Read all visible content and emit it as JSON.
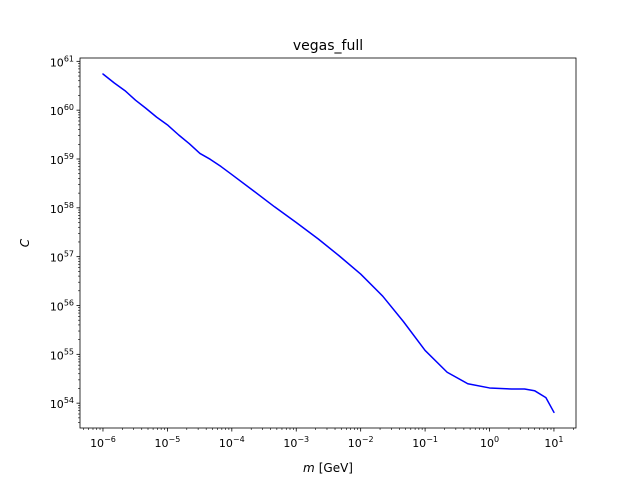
{
  "chart_data": {
    "type": "line",
    "title": "vegas_full",
    "xlabel": {
      "var": "m",
      "unit": "[GeV]"
    },
    "ylabel": "C",
    "xscale": "log",
    "yscale": "log",
    "xlim": [
      4.4e-07,
      22.0
    ],
    "ylim": [
      3.1e+53,
      1.17e+61
    ],
    "grid": false,
    "legend": "none",
    "x_ticks": [
      {
        "value": 1e-06,
        "base": "10",
        "exp": "−6"
      },
      {
        "value": 1e-05,
        "base": "10",
        "exp": "−5"
      },
      {
        "value": 0.0001,
        "base": "10",
        "exp": "−4"
      },
      {
        "value": 0.001,
        "base": "10",
        "exp": "−3"
      },
      {
        "value": 0.01,
        "base": "10",
        "exp": "−2"
      },
      {
        "value": 0.1,
        "base": "10",
        "exp": "−1"
      },
      {
        "value": 1.0,
        "base": "10",
        "exp": "0"
      },
      {
        "value": 10.0,
        "base": "10",
        "exp": "1"
      }
    ],
    "y_ticks": [
      {
        "value": 1e+54,
        "base": "10",
        "exp": "54"
      },
      {
        "value": 1e+55,
        "base": "10",
        "exp": "55"
      },
      {
        "value": 1e+56,
        "base": "10",
        "exp": "56"
      },
      {
        "value": 1e+57,
        "base": "10",
        "exp": "57"
      },
      {
        "value": 1e+58,
        "base": "10",
        "exp": "58"
      },
      {
        "value": 1e+59,
        "base": "10",
        "exp": "59"
      },
      {
        "value": 1e+60,
        "base": "10",
        "exp": "60"
      },
      {
        "value": 1e+61,
        "base": "10",
        "exp": "61"
      }
    ],
    "series": [
      {
        "color": "#0000ff",
        "x": [
          1e-06,
          1.5e-06,
          2.2e-06,
          3.2e-06,
          4.6e-06,
          6.8e-06,
          1e-05,
          1.5e-05,
          2.2e-05,
          3.2e-05,
          4.6e-05,
          6.8e-05,
          0.0001,
          0.00022,
          0.00046,
          0.001,
          0.0022,
          0.0046,
          0.01,
          0.022,
          0.046,
          0.1,
          0.22,
          0.46,
          1.0,
          2.2,
          3.5,
          5.0,
          7.5,
          10.0
        ],
        "y": [
          5.5e+60,
          3.6e+60,
          2.5e+60,
          1.6e+60,
          1.1e+60,
          7.2e+59,
          5e+59,
          3.1e+59,
          2.05e+59,
          1.3e+59,
          9.9e+58,
          7e+58,
          4.8e+58,
          2.2e+58,
          1.05e+58,
          5e+57,
          2.3e+57,
          1.05e+57,
          4.4e+56,
          1.55e+56,
          4.7e+55,
          1.2e+55,
          4.3e+54,
          2.5e+54,
          2.05e+54,
          1.95e+54,
          1.95e+54,
          1.8e+54,
          1.3e+54,
          6.5e+53
        ]
      }
    ]
  }
}
